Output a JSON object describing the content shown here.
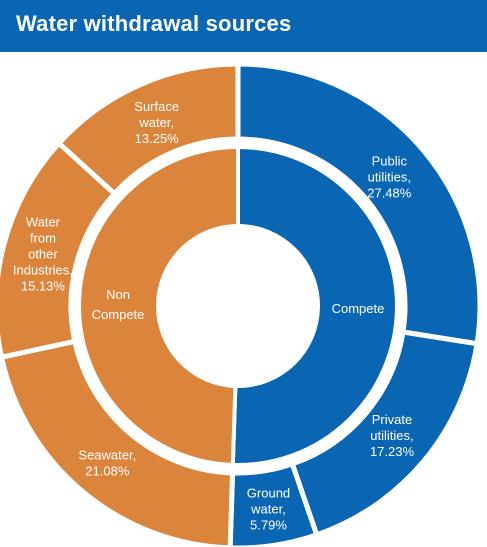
{
  "header": {
    "title": "Water withdrawal sources"
  },
  "colors": {
    "header_bg": "#0a66b2",
    "compete": "#0a66b2",
    "non_compete": "#db843c",
    "separator": "#ffffff"
  },
  "chart_data": {
    "type": "sunburst",
    "title": "Water withdrawal sources",
    "inner": [
      {
        "name": "Compete",
        "value": 50.5
      },
      {
        "name": "Non Compete",
        "value": 49.46
      }
    ],
    "outer": [
      {
        "name": "Public utilities",
        "value": 27.48,
        "parent": "Compete",
        "label": [
          "Public",
          "utilities,",
          "27.48%"
        ]
      },
      {
        "name": "Private utilities",
        "value": 17.23,
        "parent": "Compete",
        "label": [
          "Private",
          "utilities,",
          "17.23%"
        ]
      },
      {
        "name": "Ground water",
        "value": 5.79,
        "parent": "Compete",
        "label": [
          "Ground",
          "water,",
          "5.79%"
        ]
      },
      {
        "name": "Seawater",
        "value": 21.08,
        "parent": "Non Compete",
        "label": [
          "Seawater,",
          "21.08%"
        ]
      },
      {
        "name": "Water from other Industries",
        "value": 15.13,
        "parent": "Non Compete",
        "label": [
          "Water",
          "from",
          "other",
          "Industries,",
          "15.13%"
        ]
      },
      {
        "name": "Surface water",
        "value": 13.25,
        "parent": "Non Compete",
        "label": [
          "Surface",
          "water,",
          "13.25%"
        ]
      }
    ],
    "inner_labels": [
      {
        "name": "Compete",
        "lines": [
          "Compete"
        ]
      },
      {
        "name": "Non Compete",
        "lines": [
          "Non",
          "Compete"
        ]
      }
    ]
  }
}
